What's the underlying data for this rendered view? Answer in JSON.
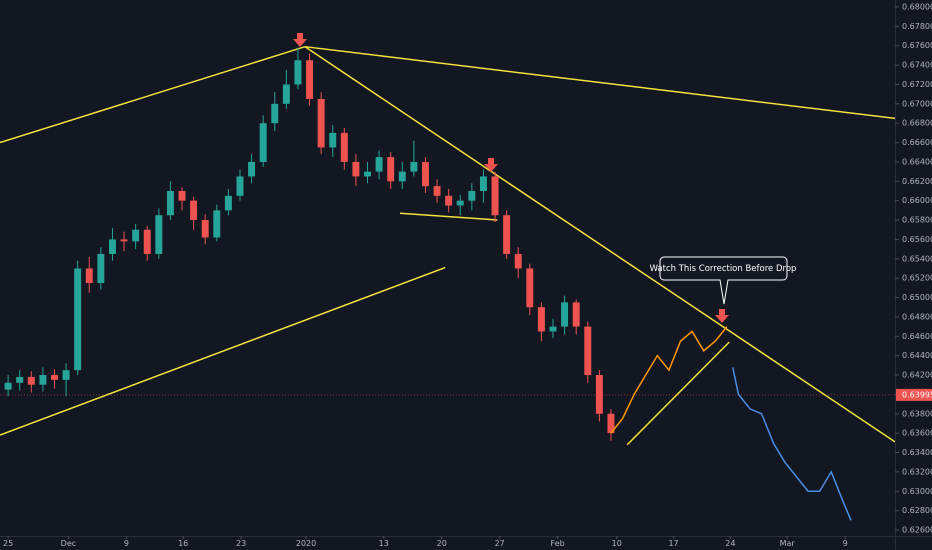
{
  "chart_data": {
    "type": "candlestick",
    "xlim": [
      -0.7,
      76.5
    ],
    "ylim": [
      0.62538,
      0.68072
    ],
    "xticks": [
      {
        "value": 0,
        "label": "25"
      },
      {
        "value": 5.2,
        "label": "Dec"
      },
      {
        "value": 10.2,
        "label": "9"
      },
      {
        "value": 15.1,
        "label": "16"
      },
      {
        "value": 20.1,
        "label": "23"
      },
      {
        "value": 25.7,
        "label": "2020"
      },
      {
        "value": 32.4,
        "label": "13"
      },
      {
        "value": 37.4,
        "label": "20"
      },
      {
        "value": 42.4,
        "label": "27"
      },
      {
        "value": 47.4,
        "label": "Feb"
      },
      {
        "value": 52.5,
        "label": "10"
      },
      {
        "value": 57.4,
        "label": "17"
      },
      {
        "value": 62.3,
        "label": "24"
      },
      {
        "value": 67.2,
        "label": "Mar"
      },
      {
        "value": 72.2,
        "label": "9"
      }
    ],
    "yticks": [
      {
        "value": 0.626,
        "label": "0.62600"
      },
      {
        "value": 0.628,
        "label": "0.62800"
      },
      {
        "value": 0.63,
        "label": "0.63000"
      },
      {
        "value": 0.632,
        "label": "0.63200"
      },
      {
        "value": 0.634,
        "label": "0.63400"
      },
      {
        "value": 0.636,
        "label": "0.63600"
      },
      {
        "value": 0.638,
        "label": "0.63800"
      },
      {
        "value": 0.64,
        "label": "0.64000"
      },
      {
        "value": 0.642,
        "label": "0.64200"
      },
      {
        "value": 0.644,
        "label": "0.64400"
      },
      {
        "value": 0.646,
        "label": "0.64600"
      },
      {
        "value": 0.648,
        "label": "0.64800"
      },
      {
        "value": 0.65,
        "label": "0.65000"
      },
      {
        "value": 0.652,
        "label": "0.65200"
      },
      {
        "value": 0.654,
        "label": "0.65400"
      },
      {
        "value": 0.656,
        "label": "0.65600"
      },
      {
        "value": 0.658,
        "label": "0.65800"
      },
      {
        "value": 0.66,
        "label": "0.66000"
      },
      {
        "value": 0.662,
        "label": "0.66200"
      },
      {
        "value": 0.664,
        "label": "0.66400"
      },
      {
        "value": 0.666,
        "label": "0.66600"
      },
      {
        "value": 0.668,
        "label": "0.66800"
      },
      {
        "value": 0.67,
        "label": "0.67000"
      },
      {
        "value": 0.672,
        "label": "0.67200"
      },
      {
        "value": 0.674,
        "label": "0.67400"
      },
      {
        "value": 0.676,
        "label": "0.67600"
      },
      {
        "value": 0.678,
        "label": "0.67800"
      },
      {
        "value": 0.68,
        "label": "0.68000"
      }
    ],
    "grid": false,
    "up_color": "#26a69a",
    "down_color": "#ef5350",
    "candles": {
      "x": [
        0,
        1,
        2,
        3,
        4,
        5,
        6,
        7,
        8,
        9,
        10,
        11,
        12,
        13,
        14,
        15,
        16,
        17,
        18,
        19,
        20,
        21,
        22,
        23,
        24,
        25,
        26,
        27,
        28,
        29,
        30,
        31,
        32,
        33,
        34,
        35,
        36,
        37,
        38,
        39,
        40,
        41,
        42,
        43,
        44,
        45,
        46,
        47,
        48,
        49,
        50,
        51,
        52
      ],
      "open": [
        0.6405,
        0.6412,
        0.6418,
        0.641,
        0.642,
        0.6415,
        0.6425,
        0.653,
        0.6515,
        0.6545,
        0.656,
        0.6558,
        0.657,
        0.6545,
        0.6585,
        0.661,
        0.66,
        0.658,
        0.6562,
        0.659,
        0.6605,
        0.6625,
        0.664,
        0.668,
        0.67,
        0.672,
        0.6745,
        0.6705,
        0.6655,
        0.667,
        0.664,
        0.6625,
        0.663,
        0.6645,
        0.662,
        0.663,
        0.664,
        0.6615,
        0.6605,
        0.6595,
        0.66,
        0.661,
        0.6625,
        0.6585,
        0.6545,
        0.653,
        0.649,
        0.6465,
        0.647,
        0.6495,
        0.647,
        0.642,
        0.638
      ],
      "high": [
        0.642,
        0.6425,
        0.6424,
        0.6428,
        0.6426,
        0.6432,
        0.6538,
        0.6542,
        0.6552,
        0.6572,
        0.6568,
        0.6576,
        0.6574,
        0.6592,
        0.662,
        0.6614,
        0.6604,
        0.6586,
        0.6596,
        0.6612,
        0.6632,
        0.6648,
        0.6688,
        0.6712,
        0.6735,
        0.6758,
        0.6752,
        0.6712,
        0.6678,
        0.6675,
        0.6648,
        0.664,
        0.6652,
        0.665,
        0.664,
        0.6662,
        0.6645,
        0.6622,
        0.6612,
        0.6606,
        0.6618,
        0.6632,
        0.663,
        0.659,
        0.6552,
        0.6535,
        0.6495,
        0.6478,
        0.6502,
        0.6498,
        0.6475,
        0.6425,
        0.6385
      ],
      "low": [
        0.6398,
        0.6404,
        0.6402,
        0.6403,
        0.6406,
        0.6398,
        0.642,
        0.6505,
        0.6508,
        0.6538,
        0.6548,
        0.655,
        0.6538,
        0.654,
        0.658,
        0.659,
        0.657,
        0.6555,
        0.6558,
        0.6585,
        0.66,
        0.6618,
        0.6635,
        0.6672,
        0.6695,
        0.6715,
        0.6698,
        0.6648,
        0.6645,
        0.6632,
        0.6615,
        0.6618,
        0.6622,
        0.6612,
        0.6612,
        0.6625,
        0.6608,
        0.6598,
        0.6588,
        0.6585,
        0.659,
        0.6598,
        0.6578,
        0.654,
        0.652,
        0.6482,
        0.6455,
        0.6458,
        0.6462,
        0.6462,
        0.6412,
        0.6372,
        0.6352
      ],
      "close": [
        0.6412,
        0.6418,
        0.641,
        0.642,
        0.6415,
        0.6425,
        0.653,
        0.6515,
        0.6545,
        0.656,
        0.6558,
        0.657,
        0.6545,
        0.6585,
        0.661,
        0.66,
        0.658,
        0.6562,
        0.659,
        0.6605,
        0.6625,
        0.664,
        0.668,
        0.67,
        0.672,
        0.6745,
        0.6705,
        0.6655,
        0.667,
        0.664,
        0.6625,
        0.663,
        0.6645,
        0.662,
        0.663,
        0.664,
        0.6615,
        0.6605,
        0.6595,
        0.66,
        0.661,
        0.6625,
        0.6585,
        0.6545,
        0.653,
        0.649,
        0.6465,
        0.647,
        0.6495,
        0.647,
        0.642,
        0.638,
        0.636
      ]
    },
    "series": [
      {
        "color": "#ff9800",
        "x": [
          52,
          53,
          54,
          55,
          56,
          57,
          58,
          59,
          60,
          61,
          62
        ],
        "values": [
          0.636,
          0.6375,
          0.64,
          0.642,
          0.644,
          0.6425,
          0.6455,
          0.6465,
          0.6445,
          0.6455,
          0.647
        ]
      },
      {
        "color": "#4a8fe7",
        "x": [
          62.5,
          63,
          64,
          65,
          66,
          67,
          68,
          69,
          70,
          71,
          71.5,
          72,
          72.7
        ],
        "values": [
          0.6428,
          0.64,
          0.6385,
          0.638,
          0.635,
          0.633,
          0.6315,
          0.63,
          0.63,
          0.632,
          0.6305,
          0.629,
          0.627
        ]
      }
    ],
    "trendlines": {
      "color": "#f5e33b",
      "lines": [
        [
          -0.7,
          0.666,
          25.6,
          0.6759
        ],
        [
          25.6,
          0.6759,
          76.5,
          0.6685
        ],
        [
          25.6,
          0.6759,
          76.5,
          0.6351
        ],
        [
          -0.7,
          0.6358,
          37.7,
          0.6531
        ],
        [
          33.8,
          0.6587,
          42.2,
          0.658
        ],
        [
          53.4,
          0.6348,
          62.2,
          0.6454
        ]
      ]
    },
    "current_price": 0.63995,
    "annotation": "Watch This Correction Before Drop"
  }
}
